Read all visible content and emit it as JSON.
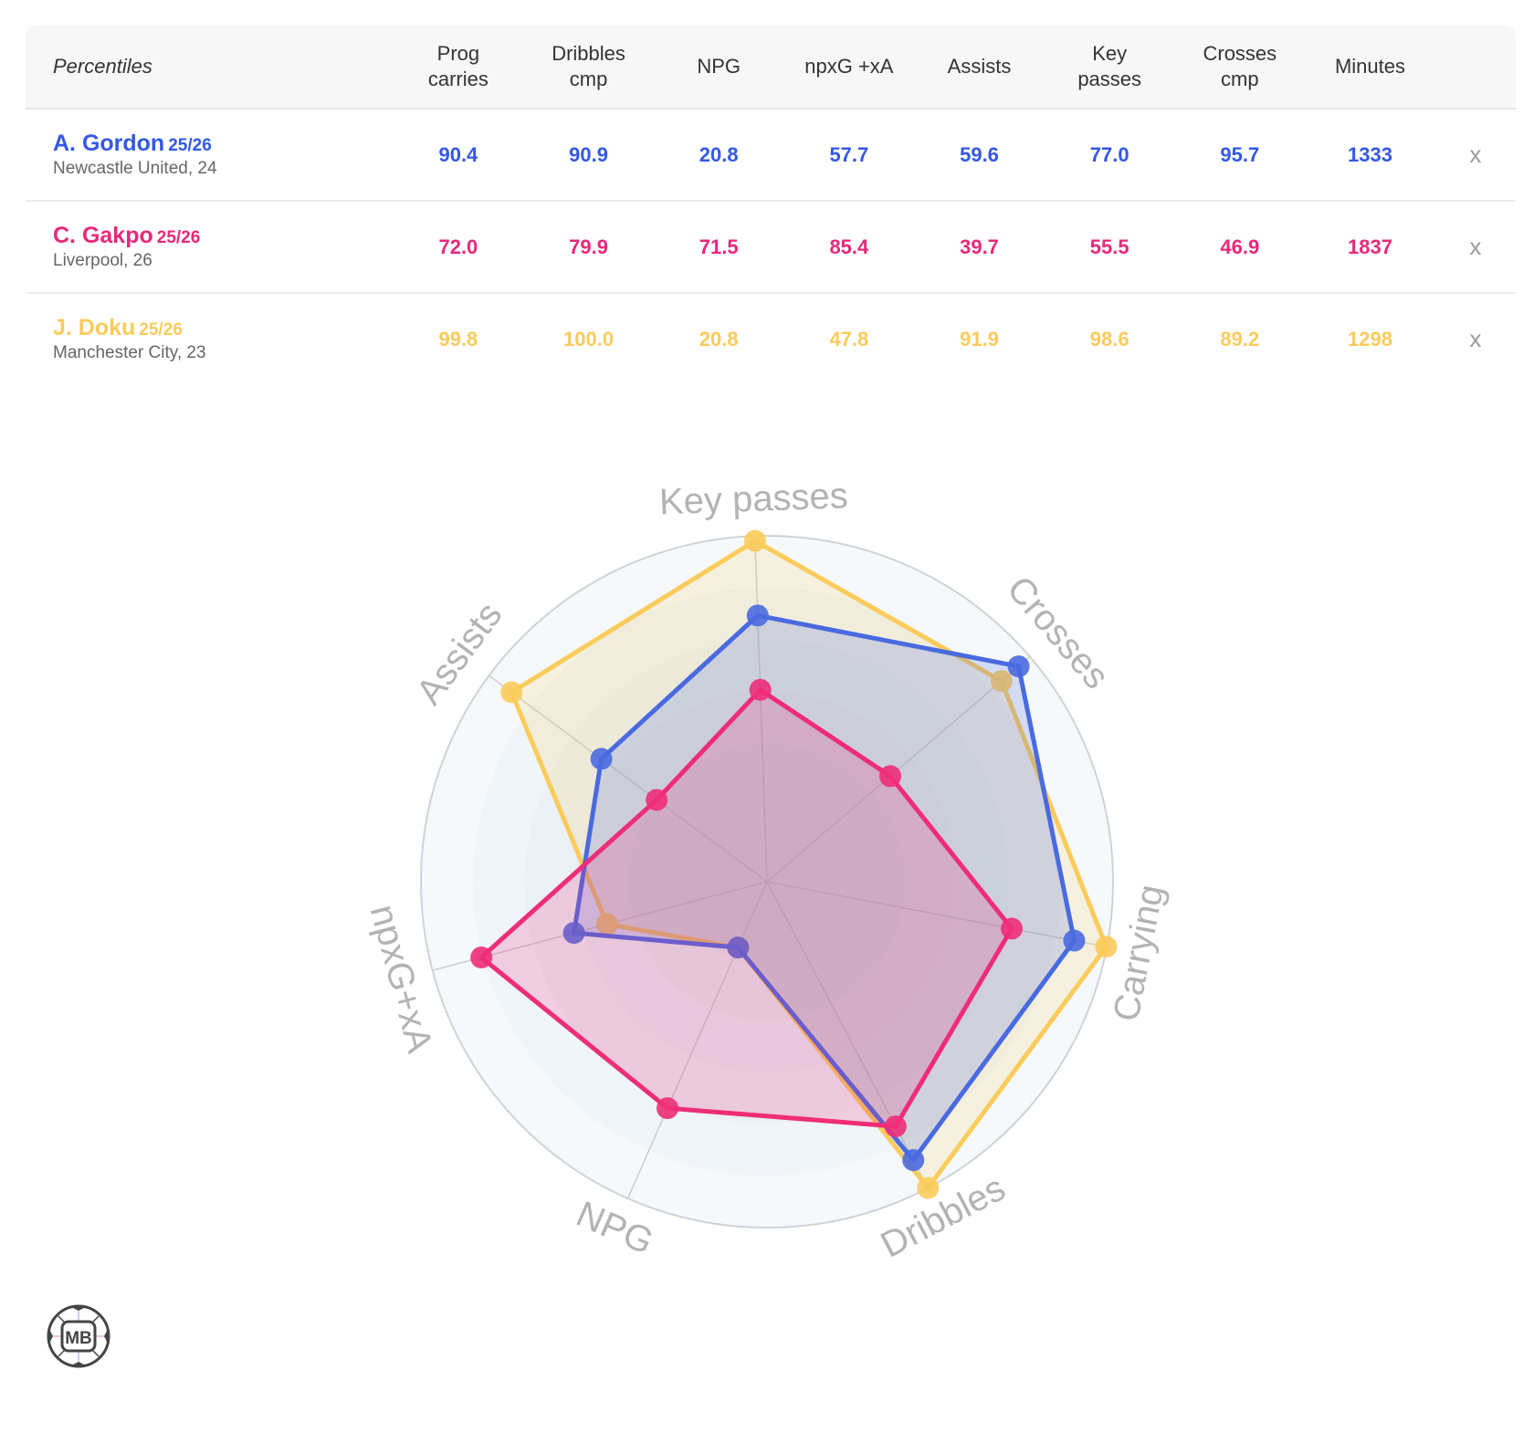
{
  "table": {
    "header_label": "Percentiles",
    "columns": [
      {
        "line1": "Prog",
        "line2": "carries"
      },
      {
        "line1": "Dribbles",
        "line2": "cmp"
      },
      {
        "line1": "NPG",
        "line2": ""
      },
      {
        "line1": "npxG +xA",
        "line2": ""
      },
      {
        "line1": "Assists",
        "line2": ""
      },
      {
        "line1": "Key",
        "line2": "passes"
      },
      {
        "line1": "Crosses",
        "line2": "cmp"
      },
      {
        "line1": "Minutes",
        "line2": ""
      }
    ],
    "rows": [
      {
        "name": "A. Gordon",
        "season": "25/26",
        "club": "Newcastle United, 24",
        "color": "#3358e6",
        "values": [
          "90.4",
          "90.9",
          "20.8",
          "57.7",
          "59.6",
          "77.0",
          "95.7",
          "1333"
        ],
        "remove": "x"
      },
      {
        "name": "C. Gakpo",
        "season": "25/26",
        "club": "Liverpool, 26",
        "color": "#e8287a",
        "values": [
          "72.0",
          "79.9",
          "71.5",
          "85.4",
          "39.7",
          "55.5",
          "46.9",
          "1837"
        ],
        "remove": "x"
      },
      {
        "name": "J. Doku",
        "season": "25/26",
        "club": "Manchester City, 23",
        "color": "#fbcb5b",
        "values": [
          "99.8",
          "100.0",
          "20.8",
          "47.8",
          "91.9",
          "98.6",
          "89.2",
          "1298"
        ],
        "remove": "x"
      }
    ]
  },
  "chart_data": {
    "type": "radar",
    "title": "",
    "axes": [
      "Key passes",
      "Crosses",
      "Carrying",
      "Dribbles",
      "NPG",
      "npxG+xA",
      "Assists"
    ],
    "range": [
      0,
      100
    ],
    "series": [
      {
        "name": "A. Gordon 25/26",
        "color": "#4a6ae0",
        "values": [
          77.0,
          95.7,
          90.4,
          90.9,
          20.8,
          57.7,
          59.6
        ]
      },
      {
        "name": "C. Gakpo 25/26",
        "color": "#ee2d78",
        "values": [
          55.5,
          46.9,
          72.0,
          79.9,
          71.5,
          85.4,
          39.7
        ]
      },
      {
        "name": "J. Doku 25/26",
        "color": "#fbcb5b",
        "values": [
          98.6,
          89.2,
          99.8,
          100.0,
          20.8,
          47.8,
          91.9
        ]
      }
    ]
  },
  "logo": {
    "text": "MB"
  }
}
